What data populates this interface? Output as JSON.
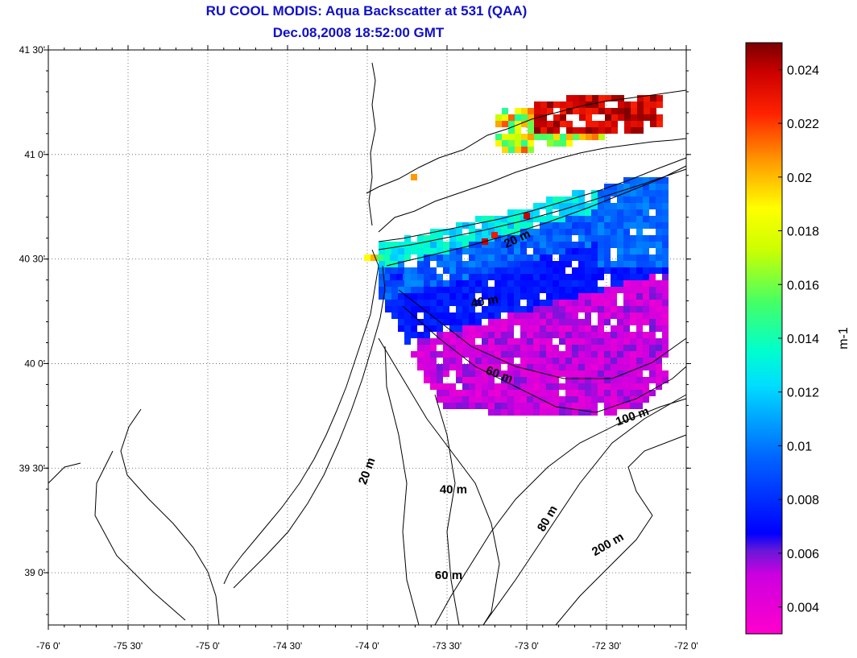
{
  "map": {
    "title_line1": "RU COOL MODIS: Aqua Backscatter at 531 (QAA)",
    "title_line2": "Dec.08,2008 18:52:00 GMT",
    "x_ticks": [
      "-76 0'",
      "-75 30'",
      "-75 0'",
      "-74 30'",
      "-74 0'",
      "-73 30'",
      "-73 0'",
      "-72 30'",
      "-72 0'"
    ],
    "y_ticks": [
      "41 30'",
      "41 0'",
      "40 30'",
      "40 0'",
      "39 30'",
      "39 0'"
    ],
    "contour_labels": [
      {
        "text": "20 m",
        "lon": -73.05,
        "lat": 40.58,
        "rot": -25
      },
      {
        "text": "40 m",
        "lon": -73.26,
        "lat": 40.28,
        "rot": -10
      },
      {
        "text": "60 m",
        "lon": -73.18,
        "lat": 39.93,
        "rot": 20
      },
      {
        "text": "100 m",
        "lon": -72.33,
        "lat": 39.73,
        "rot": -20
      },
      {
        "text": "20 m",
        "lon": -73.98,
        "lat": 39.48,
        "rot": -70
      },
      {
        "text": "40 m",
        "lon": -73.46,
        "lat": 39.38,
        "rot": 0
      },
      {
        "text": "80 m",
        "lon": -72.85,
        "lat": 39.25,
        "rot": -60
      },
      {
        "text": "200 m",
        "lon": -72.48,
        "lat": 39.12,
        "rot": -30
      },
      {
        "text": "60 m",
        "lon": -73.49,
        "lat": 38.97,
        "rot": 0
      }
    ]
  },
  "colorbar": {
    "unit_label": "m-1",
    "ticks": [
      "0.024",
      "0.022",
      "0.02",
      "0.018",
      "0.016",
      "0.014",
      "0.012",
      "0.01",
      "0.008",
      "0.006",
      "0.004"
    ],
    "tick_values": [
      0.024,
      0.022,
      0.02,
      0.018,
      0.016,
      0.014,
      0.012,
      0.01,
      0.008,
      0.006,
      0.004
    ],
    "min": 0.003,
    "max": 0.025
  },
  "colors": {
    "title": "#1010c8"
  }
}
